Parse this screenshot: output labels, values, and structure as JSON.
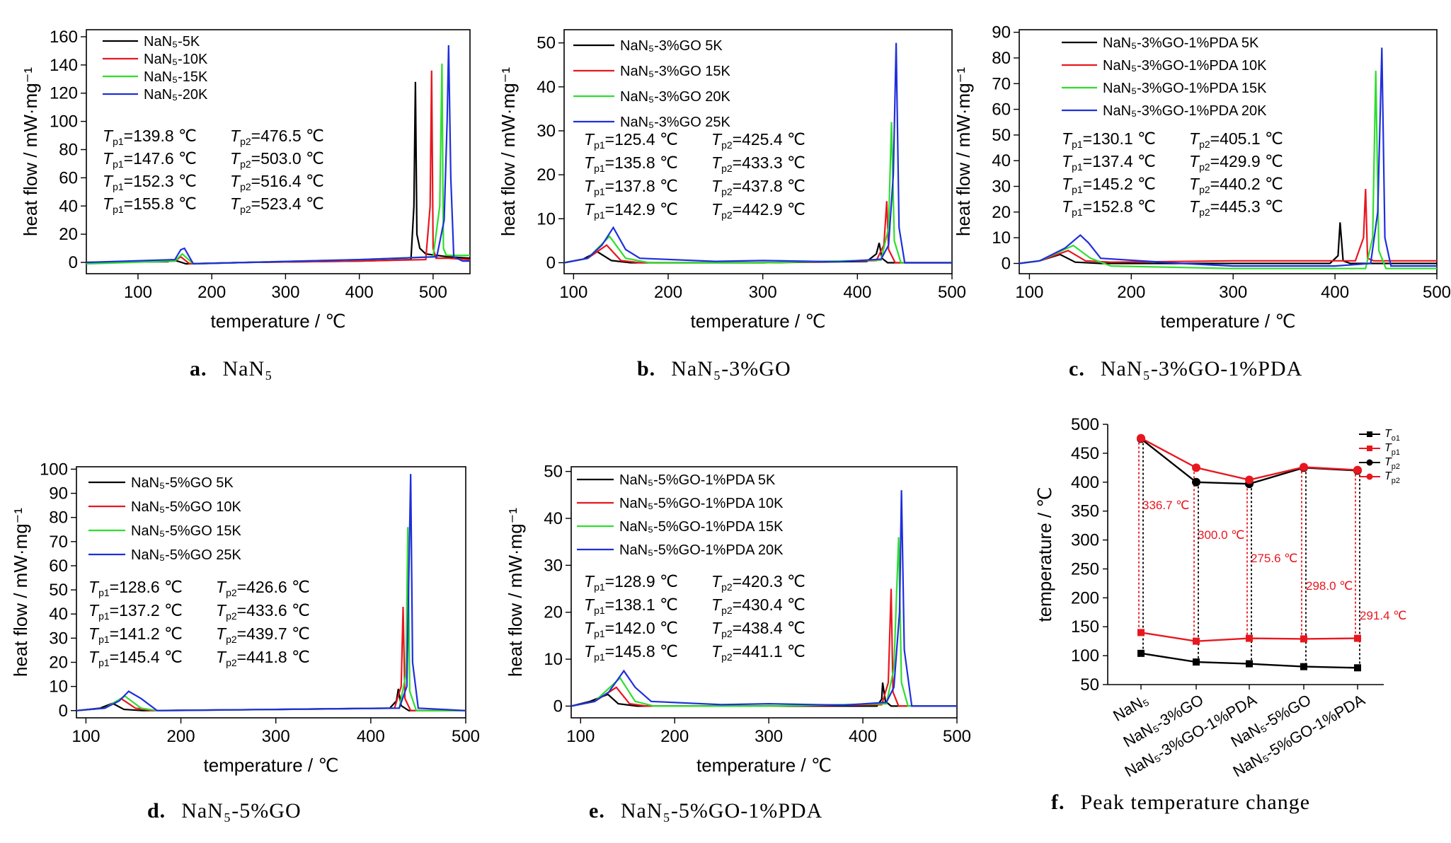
{
  "chart_data": [
    {
      "id": "a",
      "type": "line",
      "caption_letter": "a.",
      "caption_text": "NaN₅",
      "xlabel": "temperature / ℃",
      "ylabel": "heat flow / mW·mg⁻¹",
      "xlim": [
        30,
        550
      ],
      "ylim": [
        -8,
        165
      ],
      "xticks": [
        100,
        200,
        300,
        400,
        500
      ],
      "yticks": [
        0,
        20,
        40,
        60,
        80,
        100,
        120,
        140,
        160
      ],
      "legend_position": "top-left",
      "series": [
        {
          "name": "NaN₅-5K",
          "color": "#000000",
          "x": [
            30,
            140,
            150,
            165,
            250,
            400,
            470,
            474,
            476,
            478,
            482,
            490,
            520,
            550
          ],
          "y": [
            0,
            0.5,
            1.5,
            -1,
            0,
            1,
            2,
            40,
            128,
            20,
            10,
            6,
            4,
            3
          ]
        },
        {
          "name": "NaN₅-10K",
          "color": "#e8171f",
          "x": [
            30,
            150,
            158,
            170,
            250,
            400,
            490,
            496,
            498,
            500,
            504,
            520,
            550
          ],
          "y": [
            0,
            1,
            4,
            -1,
            0,
            1,
            2,
            40,
            136,
            10,
            3,
            3,
            2
          ]
        },
        {
          "name": "NaN₅-15K",
          "color": "#2ede2e",
          "x": [
            30,
            150,
            160,
            175,
            250,
            400,
            500,
            509,
            512,
            514,
            518,
            530,
            550
          ],
          "y": [
            -1,
            1,
            6,
            -1,
            0,
            2,
            4,
            40,
            141,
            10,
            5,
            5,
            5
          ]
        },
        {
          "name": "NaN₅-20K",
          "color": "#1f2fdc",
          "x": [
            30,
            150,
            158,
            163,
            175,
            250,
            400,
            505,
            515,
            519,
            521,
            524,
            528,
            540,
            550
          ],
          "y": [
            0,
            2,
            9,
            10,
            -1,
            0,
            2,
            4,
            30,
            100,
            154,
            60,
            4,
            1,
            1
          ]
        }
      ],
      "annotations": {
        "tp1": [
          "=139.8 ℃",
          "=147.6 ℃",
          "=152.3 ℃",
          "=155.8 ℃"
        ],
        "tp2": [
          "=476.5 ℃",
          "=503.0 ℃",
          "=516.4 ℃",
          "=523.4 ℃"
        ]
      }
    },
    {
      "id": "b",
      "type": "line",
      "caption_letter": "b.",
      "caption_text": "NaN₅-3%GO",
      "xlabel": "temperature / ℃",
      "ylabel": "heat flow / mW·mg⁻¹",
      "xlim": [
        90,
        500
      ],
      "ylim": [
        -2.5,
        53
      ],
      "xticks": [
        100,
        200,
        300,
        400,
        500
      ],
      "yticks": [
        0,
        10,
        20,
        30,
        40,
        50
      ],
      "legend_position": "top-left",
      "series": [
        {
          "name": "NaN₅-3%GO 5K",
          "color": "#000000",
          "x": [
            90,
            110,
            125,
            140,
            160,
            300,
            410,
            420,
            423,
            426,
            432,
            500
          ],
          "y": [
            0,
            0.8,
            2.5,
            0.5,
            0,
            0,
            0.3,
            2,
            4.5,
            1,
            0,
            0
          ]
        },
        {
          "name": "NaN₅-3%GO 15K",
          "color": "#e8171f",
          "x": [
            90,
            115,
            135,
            150,
            170,
            300,
            420,
            428,
            431,
            433,
            440,
            500
          ],
          "y": [
            0,
            1,
            4,
            0.5,
            0,
            0,
            0.5,
            4,
            14,
            3,
            0,
            0
          ]
        },
        {
          "name": "NaN₅-3%GO 20K",
          "color": "#2ede2e",
          "x": [
            90,
            115,
            138,
            155,
            180,
            300,
            425,
            433,
            436,
            439,
            446,
            500
          ],
          "y": [
            0,
            1,
            6,
            1,
            0,
            0,
            0.6,
            8,
            32,
            5,
            0,
            0
          ]
        },
        {
          "name": "NaN₅-3%GO 25K",
          "color": "#1f2fdc",
          "x": [
            90,
            115,
            130,
            142,
            155,
            170,
            250,
            300,
            380,
            425,
            433,
            438,
            441,
            444,
            450,
            500
          ],
          "y": [
            0,
            1,
            4,
            8,
            3,
            1,
            0.3,
            0.5,
            0.2,
            0.8,
            4,
            20,
            50,
            8,
            0,
            0
          ]
        }
      ],
      "annotations": {
        "tp1": [
          "=125.4 ℃",
          "=135.8 ℃",
          "=137.8 ℃",
          "=142.9 ℃"
        ],
        "tp2": [
          "=425.4 ℃",
          "=433.3 ℃",
          "=437.8 ℃",
          "=442.9 ℃"
        ]
      }
    },
    {
      "id": "c",
      "type": "line",
      "caption_letter": "c.",
      "caption_text": "NaN₅-3%GO-1%PDA",
      "xlabel": "temperature / ℃",
      "ylabel": "heat flow / mW·mg⁻¹",
      "xlim": [
        90,
        500
      ],
      "ylim": [
        -4,
        91
      ],
      "xticks": [
        100,
        200,
        300,
        400,
        500
      ],
      "yticks": [
        0,
        10,
        20,
        30,
        40,
        50,
        60,
        70,
        80,
        90
      ],
      "legend_position": "top-left",
      "series": [
        {
          "name": "NaN₅-3%GO-1%PDA 5K",
          "color": "#000000",
          "x": [
            90,
            110,
            130,
            145,
            170,
            300,
            395,
            403,
            405,
            408,
            415,
            500
          ],
          "y": [
            0,
            1,
            3.5,
            0.5,
            0,
            0,
            0,
            3,
            16,
            1,
            0,
            0
          ]
        },
        {
          "name": "NaN₅-3%GO-1%PDA 10K",
          "color": "#e8171f",
          "x": [
            90,
            110,
            138,
            155,
            180,
            300,
            420,
            428,
            430,
            432,
            438,
            500
          ],
          "y": [
            0,
            1,
            5,
            1,
            0.5,
            1,
            1,
            10,
            29,
            2,
            1,
            1
          ]
        },
        {
          "name": "NaN₅-3%GO-1%PDA 15K",
          "color": "#2ede2e",
          "x": [
            90,
            110,
            143,
            160,
            180,
            300,
            430,
            437,
            440,
            443,
            450,
            500
          ],
          "y": [
            0,
            1,
            7,
            2,
            -1,
            -2,
            -2,
            10,
            75,
            5,
            -2,
            -2
          ]
        },
        {
          "name": "NaN₅-3%GO-1%PDA 20K",
          "color": "#1f2fdc",
          "x": [
            90,
            110,
            135,
            150,
            158,
            170,
            250,
            300,
            400,
            435,
            442,
            446,
            449,
            455,
            500
          ],
          "y": [
            0,
            1,
            6,
            11,
            8,
            2,
            0,
            -1,
            -1,
            0,
            20,
            84,
            10,
            -1,
            -1
          ]
        }
      ],
      "annotations": {
        "tp1": [
          "=130.1 ℃",
          "=137.4 ℃",
          "=145.2 ℃",
          "=152.8 ℃"
        ],
        "tp2": [
          "=405.1 ℃",
          "=429.9 ℃",
          "=440.2 ℃",
          "=445.3 ℃"
        ]
      }
    },
    {
      "id": "d",
      "type": "line",
      "caption_letter": "d.",
      "caption_text": "NaN₅-5%GO",
      "xlabel": "temperature / ℃",
      "ylabel": "heat flow / mW·mg⁻¹",
      "xlim": [
        90,
        500
      ],
      "ylim": [
        -3,
        101
      ],
      "xticks": [
        100,
        200,
        300,
        400,
        500
      ],
      "yticks": [
        0,
        10,
        20,
        30,
        40,
        50,
        60,
        70,
        80,
        90,
        100
      ],
      "legend_position": "top-left",
      "series": [
        {
          "name": "NaN₅-5%GO 5K",
          "color": "#000000",
          "x": [
            90,
            115,
            128,
            140,
            160,
            300,
            420,
            427,
            429,
            432,
            440,
            500
          ],
          "y": [
            0,
            1,
            3,
            0.5,
            0,
            0.5,
            1,
            4,
            9,
            2,
            0,
            0
          ]
        },
        {
          "name": "NaN₅-5%GO 10K",
          "color": "#e8171f",
          "x": [
            90,
            120,
            137,
            152,
            170,
            300,
            425,
            432,
            434,
            436,
            442,
            500
          ],
          "y": [
            0,
            1,
            5,
            1,
            0,
            0.5,
            1,
            10,
            43,
            5,
            0,
            0
          ]
        },
        {
          "name": "NaN₅-5%GO 15K",
          "color": "#2ede2e",
          "x": [
            90,
            120,
            141,
            158,
            175,
            300,
            430,
            437,
            439,
            441,
            448,
            500
          ],
          "y": [
            0,
            1,
            6,
            1,
            0,
            0.5,
            1,
            15,
            76,
            8,
            0,
            0
          ]
        },
        {
          "name": "NaN₅-5%GO 25K",
          "color": "#1f2fdc",
          "x": [
            90,
            120,
            135,
            145,
            158,
            175,
            300,
            430,
            438,
            442,
            444,
            450,
            500
          ],
          "y": [
            0,
            1,
            4,
            8,
            5,
            0,
            0.5,
            1,
            10,
            98,
            20,
            1,
            0
          ]
        }
      ],
      "annotations": {
        "tp1": [
          "=128.6 ℃",
          "=137.2 ℃",
          "=141.2 ℃",
          "=145.4 ℃"
        ],
        "tp2": [
          "=426.6 ℃",
          "=433.6 ℃",
          "=439.7 ℃",
          "=441.8 ℃"
        ]
      }
    },
    {
      "id": "e",
      "type": "line",
      "caption_letter": "e.",
      "caption_text": "NaN₅-5%GO-1%PDA",
      "xlabel": "temperature / ℃",
      "ylabel": "heat flow / mW·mg⁻¹",
      "xlim": [
        90,
        500
      ],
      "ylim": [
        -2.5,
        51
      ],
      "xticks": [
        100,
        200,
        300,
        400,
        500
      ],
      "yticks": [
        0,
        10,
        20,
        30,
        40,
        50
      ],
      "legend_position": "top-left",
      "series": [
        {
          "name": "NaN₅-5%GO-1%PDA 5K",
          "color": "#000000",
          "x": [
            90,
            110,
            129,
            140,
            160,
            300,
            415,
            420,
            421,
            424,
            430,
            500
          ],
          "y": [
            0,
            1,
            2.5,
            0.5,
            0,
            0,
            0,
            1.5,
            5,
            1,
            0,
            0
          ]
        },
        {
          "name": "NaN₅-5%GO-1%PDA 10K",
          "color": "#e8171f",
          "x": [
            90,
            115,
            138,
            152,
            170,
            300,
            420,
            427,
            430,
            432,
            438,
            500
          ],
          "y": [
            0,
            1,
            4,
            0.5,
            0,
            0,
            0.3,
            5,
            25,
            3,
            0,
            0
          ]
        },
        {
          "name": "NaN₅-5%GO-1%PDA 15K",
          "color": "#2ede2e",
          "x": [
            90,
            115,
            142,
            158,
            178,
            300,
            425,
            433,
            438,
            441,
            448,
            500
          ],
          "y": [
            0,
            1,
            6,
            1,
            0,
            0,
            0.5,
            8,
            36,
            5,
            0,
            0
          ]
        },
        {
          "name": "NaN₅-5%GO-1%PDA 20K",
          "color": "#1f2fdc",
          "x": [
            90,
            115,
            130,
            146,
            158,
            175,
            250,
            300,
            380,
            425,
            433,
            439,
            441,
            444,
            452,
            500
          ],
          "y": [
            0,
            1,
            3,
            7.5,
            4,
            1,
            0.3,
            0.5,
            0.2,
            0.8,
            4,
            20,
            46,
            12,
            0,
            0
          ]
        }
      ],
      "annotations": {
        "tp1": [
          "=128.9 ℃",
          "=138.1 ℃",
          "=142.0 ℃",
          "=145.8 ℃"
        ],
        "tp2": [
          "=420.3 ℃",
          "=430.4 ℃",
          "=438.4 ℃",
          "=441.1 ℃"
        ]
      }
    },
    {
      "id": "f",
      "type": "line",
      "caption_letter": "f.",
      "caption_text": "Peak temperature change",
      "ylabel": "temperature / ℃",
      "ylim": [
        50,
        500
      ],
      "yticks": [
        50,
        100,
        150,
        200,
        250,
        300,
        350,
        400,
        450,
        500
      ],
      "categories": [
        "NaN₅",
        "NaN₅-3%GO",
        "NaN₅-3%GO-1%PDA",
        "NaN₅-5%GO",
        "NaN₅-5%GO-1%PDA"
      ],
      "legend_position": "top-right",
      "series": [
        {
          "name": "T",
          "sub": "o1",
          "color": "#000000",
          "marker": "square",
          "values": [
            104,
            89,
            86,
            81,
            79
          ]
        },
        {
          "name": "T",
          "sub": "p1",
          "color": "#e8171f",
          "marker": "square",
          "values": [
            140,
            125,
            130,
            129,
            130
          ]
        },
        {
          "name": "T",
          "sub": "p2",
          "color": "#000000",
          "marker": "circle",
          "values": [
            475,
            400,
            397,
            425,
            420
          ]
        },
        {
          "name": "T",
          "sub": "p2",
          "color": "#e8171f",
          "marker": "circle",
          "values": [
            476,
            425,
            404,
            426,
            421
          ]
        }
      ],
      "differences": [
        "336.7 ℃",
        "300.0 ℃",
        "275.6 ℃",
        "298.0 ℃",
        "291.4 ℃"
      ]
    }
  ]
}
